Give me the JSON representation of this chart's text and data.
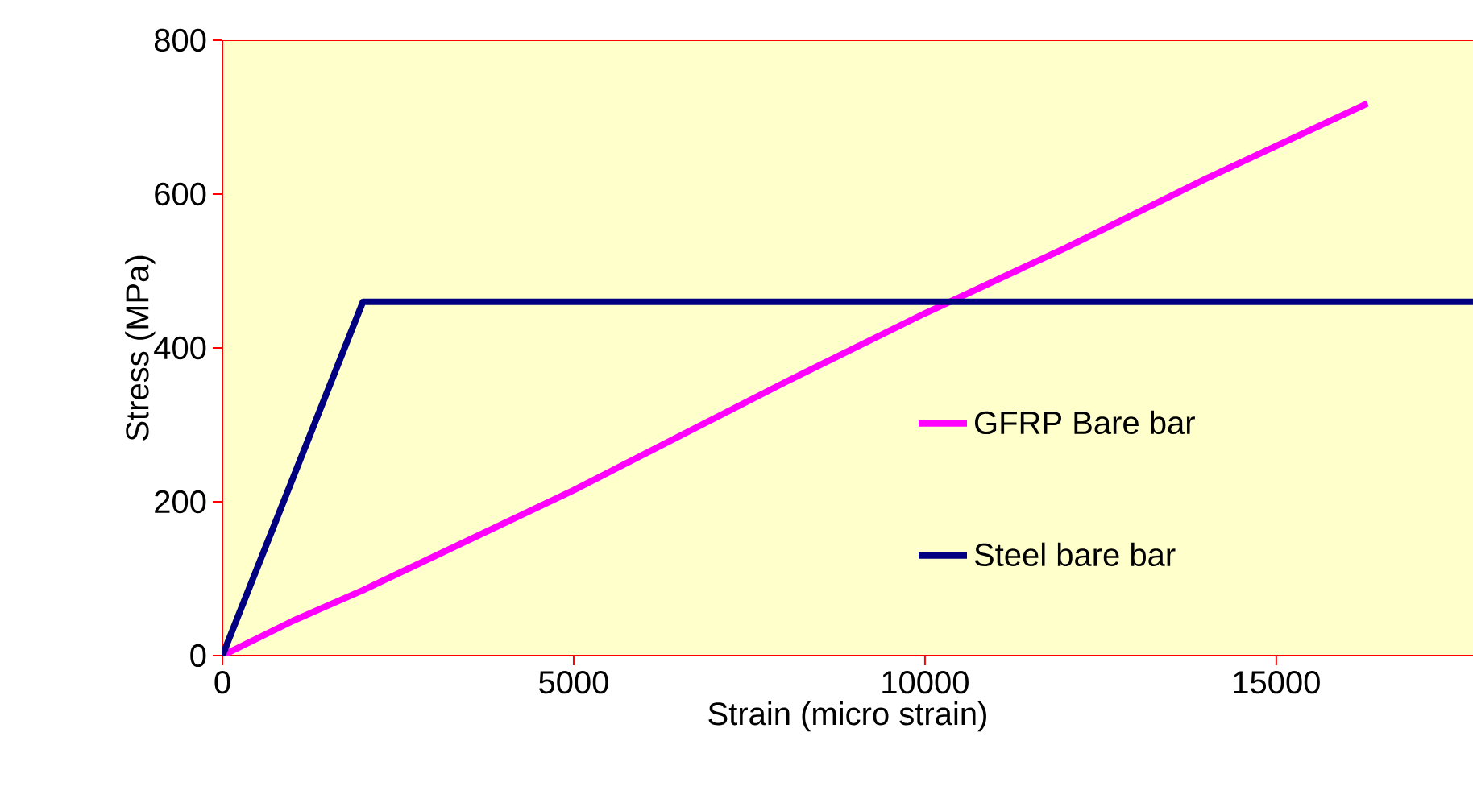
{
  "chart_data": {
    "type": "line",
    "xlabel": "Strain (micro strain)",
    "ylabel": "Stress (MPa)",
    "xlim": [
      0,
      17800
    ],
    "ylim": [
      0,
      800
    ],
    "xticks": [
      0,
      5000,
      10000,
      15000
    ],
    "yticks": [
      0,
      200,
      400,
      600,
      800
    ],
    "legend": "right",
    "grid": false,
    "marker": "none",
    "line_style": "solid",
    "series": [
      {
        "name": "GFRP Bare bar",
        "color": "#ff00ff",
        "x": [
          0,
          1000,
          1500,
          2000,
          5000,
          8000,
          10000,
          12000,
          14000,
          16300
        ],
        "values": [
          0,
          45,
          65,
          85,
          215,
          355,
          445,
          530,
          620,
          718
        ]
      },
      {
        "name": "Steel bare bar",
        "color": "#000080",
        "x": [
          0,
          2000,
          17800
        ],
        "values": [
          0,
          460,
          460
        ]
      }
    ]
  }
}
